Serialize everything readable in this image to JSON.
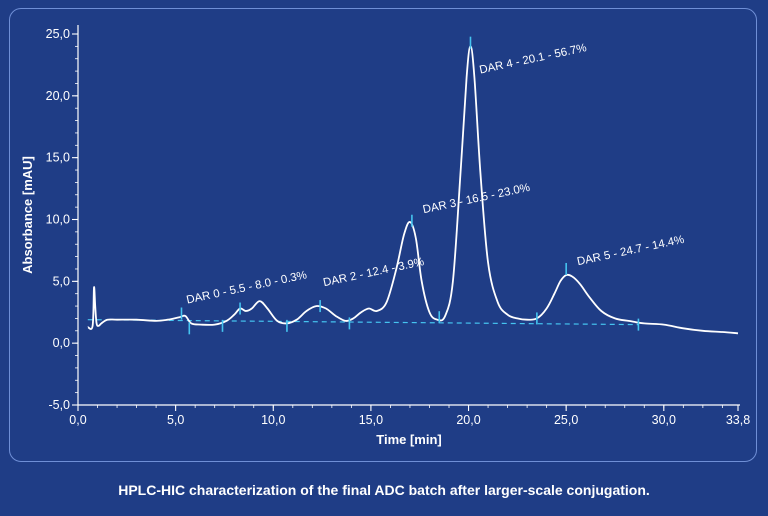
{
  "chart_data": {
    "type": "line",
    "title": "",
    "xlabel": "Time [min]",
    "ylabel": "Absorbance [mAU]",
    "xlim": [
      0,
      33.8
    ],
    "ylim": [
      -5,
      25
    ],
    "x_ticks": [
      0,
      5,
      10,
      15,
      20,
      25,
      30,
      33.8
    ],
    "x_tick_labels": [
      "0,0",
      "5,0",
      "10,0",
      "15,0",
      "20,0",
      "25,0",
      "30,0",
      "33,8"
    ],
    "y_ticks": [
      -5,
      0,
      5,
      10,
      15,
      20,
      25
    ],
    "y_tick_labels": [
      "-5,0",
      "0,0",
      "5,0",
      "10,0",
      "15,0",
      "20,0",
      "25,0"
    ],
    "grid": false,
    "series": [
      {
        "x": [
          0.5,
          0.75,
          0.82,
          0.88,
          0.95,
          1.05,
          1.2,
          1.5,
          2.0,
          3.0,
          4.0,
          4.6,
          5.2,
          5.5,
          5.8,
          6.3,
          7.0,
          7.6,
          8.0,
          8.3,
          8.6,
          8.9,
          9.3,
          9.7,
          10.2,
          10.7,
          11.2,
          11.7,
          12.2,
          12.7,
          13.2,
          13.7,
          14.1,
          14.5,
          14.9,
          15.3,
          15.8,
          16.3,
          16.7,
          17.0,
          17.3,
          17.6,
          18.0,
          18.4,
          18.8,
          19.2,
          19.6,
          19.9,
          20.1,
          20.3,
          20.6,
          21.0,
          21.5,
          22.0,
          22.5,
          23.0,
          23.5,
          24.0,
          24.4,
          24.7,
          25.0,
          25.3,
          25.7,
          26.2,
          26.8,
          27.5,
          28.2,
          29.0,
          30.0,
          31.0,
          32.0,
          33.0,
          33.8
        ],
        "y": [
          1.3,
          1.4,
          4.5,
          3.0,
          1.6,
          1.4,
          1.6,
          1.9,
          1.9,
          1.9,
          1.8,
          1.9,
          2.1,
          2.2,
          1.6,
          1.5,
          1.5,
          1.8,
          2.3,
          2.8,
          2.6,
          2.8,
          3.4,
          2.8,
          1.8,
          1.6,
          1.9,
          2.6,
          3.0,
          2.8,
          2.2,
          1.8,
          2.0,
          2.5,
          2.8,
          2.6,
          3.3,
          6.0,
          8.8,
          9.8,
          8.5,
          5.0,
          2.5,
          1.9,
          2.2,
          5.0,
          14.0,
          21.5,
          24.0,
          21.5,
          14.0,
          6.5,
          3.3,
          2.3,
          2.0,
          1.9,
          2.0,
          2.8,
          4.0,
          5.0,
          5.5,
          5.4,
          4.8,
          3.7,
          2.6,
          2.0,
          1.8,
          1.6,
          1.5,
          1.2,
          1.0,
          0.9,
          0.8
        ]
      }
    ],
    "baseline": {
      "x": [
        0.5,
        28.7
      ],
      "y": [
        1.9,
        1.5
      ]
    },
    "integration_marks": [
      {
        "x": 5.3,
        "y": 2.4
      },
      {
        "x": 5.7,
        "y": 1.2
      },
      {
        "x": 7.4,
        "y": 1.4
      },
      {
        "x": 8.3,
        "y": 2.8
      },
      {
        "x": 10.7,
        "y": 1.4
      },
      {
        "x": 12.4,
        "y": 3.0
      },
      {
        "x": 13.9,
        "y": 1.6
      },
      {
        "x": 17.1,
        "y": 9.9
      },
      {
        "x": 18.5,
        "y": 2.1
      },
      {
        "x": 20.1,
        "y": 24.3
      },
      {
        "x": 23.5,
        "y": 2.0
      },
      {
        "x": 25.0,
        "y": 6.0
      },
      {
        "x": 28.7,
        "y": 1.5
      }
    ],
    "annotations": [
      {
        "text": "DAR 0 - 5.5 - 8.0 - 0.3%",
        "x": 5.6,
        "y": 3.2
      },
      {
        "text": "DAR 2 - 12.4 - 3.9%",
        "x": 12.6,
        "y": 4.6
      },
      {
        "text": "DAR 3 - 16.5 - 23.0%",
        "x": 17.7,
        "y": 10.5
      },
      {
        "text": "DAR 4 - 20.1 - 56.7%",
        "x": 20.6,
        "y": 21.8
      },
      {
        "text": "DAR 5 - 24.7 - 14.4%",
        "x": 25.6,
        "y": 6.3
      }
    ]
  },
  "caption": "HPLC-HIC  characterization of the final ADC batch after larger-scale conjugation.",
  "colors": {
    "background": "#1f3d86",
    "curve": "#ffffff",
    "baseline": "#45c4f0",
    "marks": "#45c4f0",
    "text": "#ffffff"
  }
}
